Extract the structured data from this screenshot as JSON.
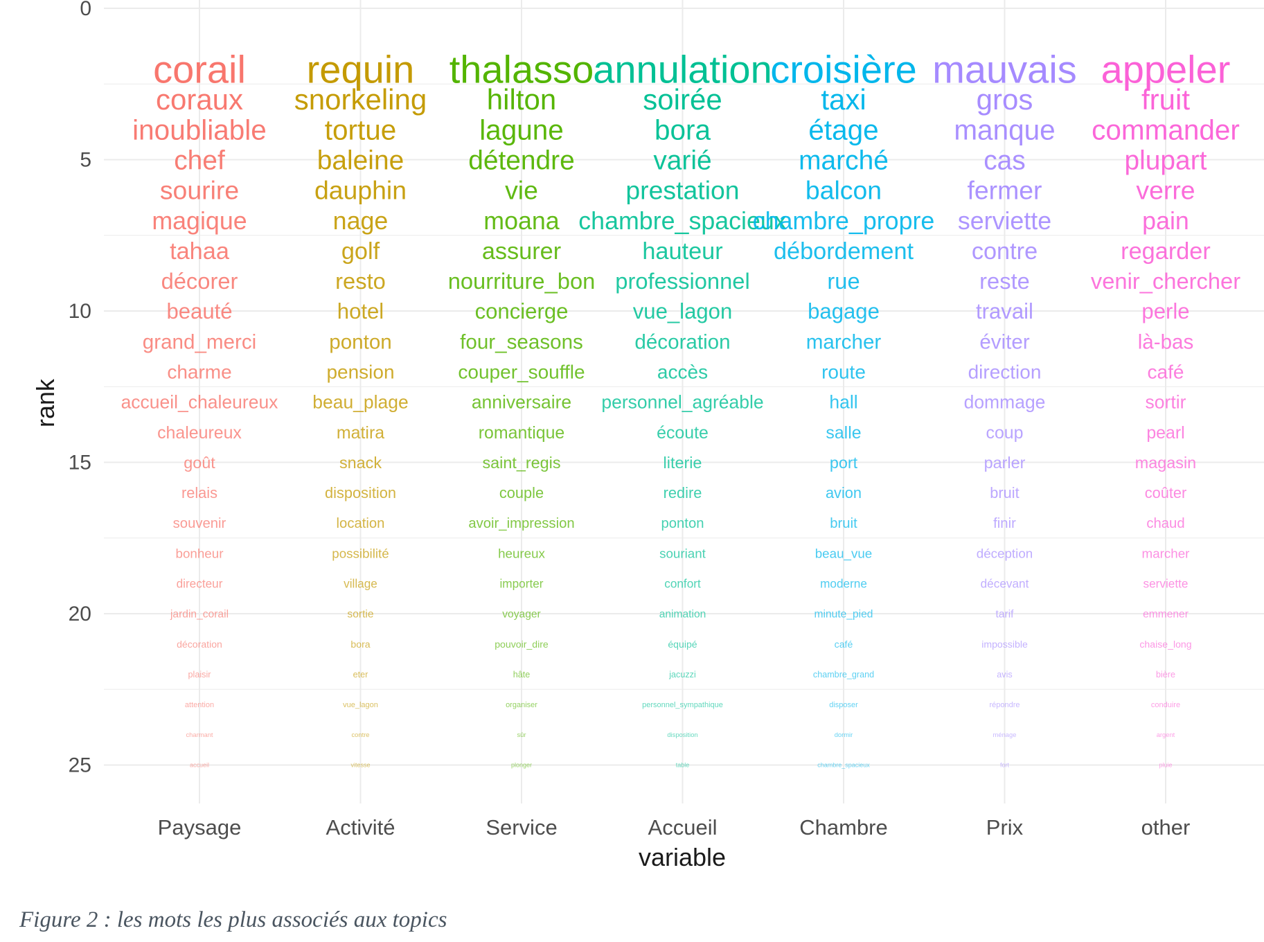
{
  "caption": "Figure 2 : les mots les plus associés aux topics",
  "chart_data": {
    "type": "text-rank",
    "title": "",
    "xlabel": "variable",
    "ylabel": "rank",
    "y_reversed": true,
    "ylim": [
      0,
      26
    ],
    "y_ticks": [
      0,
      5,
      10,
      15,
      20,
      25
    ],
    "grid": true,
    "legend": "none",
    "text_size_decreases_with_rank": true,
    "topics": [
      {
        "name": "Paysage",
        "color": "#F8766D",
        "words": [
          "corail",
          "coraux",
          "inoubliable",
          "chef",
          "sourire",
          "magique",
          "tahaa",
          "décorer",
          "beauté",
          "grand_merci",
          "charme",
          "accueil_chaleureux",
          "chaleureux",
          "goût",
          "relais",
          "souvenir",
          "bonheur",
          "directeur",
          "jardin_corail",
          "décoration",
          "plaisir",
          "attention",
          "charmant",
          "accueil"
        ]
      },
      {
        "name": "Activité",
        "color": "#C49A00",
        "words": [
          "requin",
          "snorkeling",
          "tortue",
          "baleine",
          "dauphin",
          "nage",
          "golf",
          "resto",
          "hotel",
          "ponton",
          "pension",
          "beau_plage",
          "matira",
          "snack",
          "disposition",
          "location",
          "possibilité",
          "village",
          "sortie",
          "bora",
          "eter",
          "vue_lagon",
          "contre",
          "vitesse"
        ]
      },
      {
        "name": "Service",
        "color": "#53B400",
        "words": [
          "thalasso",
          "hilton",
          "lagune",
          "détendre",
          "vie",
          "moana",
          "assurer",
          "nourriture_bon",
          "concierge",
          "four_seasons",
          "couper_souffle",
          "anniversaire",
          "romantique",
          "saint_regis",
          "couple",
          "avoir_impression",
          "heureux",
          "importer",
          "voyager",
          "pouvoir_dire",
          "hâte",
          "organiser",
          "sûr",
          "plonger"
        ]
      },
      {
        "name": "Accueil",
        "color": "#00C094",
        "words": [
          "annulation",
          "soirée",
          "bora",
          "varié",
          "prestation",
          "chambre_spacieux",
          "hauteur",
          "professionnel",
          "vue_lagon",
          "décoration",
          "accès",
          "personnel_agréable",
          "écoute",
          "literie",
          "redire",
          "ponton",
          "souriant",
          "confort",
          "animation",
          "équipé",
          "jacuzzi",
          "personnel_sympathique",
          "disposition",
          "table"
        ]
      },
      {
        "name": "Chambre",
        "color": "#00B6EB",
        "words": [
          "croisière",
          "taxi",
          "étage",
          "marché",
          "balcon",
          "chambre_propre",
          "débordement",
          "rue",
          "bagage",
          "marcher",
          "route",
          "hall",
          "salle",
          "port",
          "avion",
          "bruit",
          "beau_vue",
          "moderne",
          "minute_pied",
          "café",
          "chambre_grand",
          "disposer",
          "dormir",
          "chambre_spacieux"
        ]
      },
      {
        "name": "Prix",
        "color": "#A58AFF",
        "words": [
          "mauvais",
          "gros",
          "manque",
          "cas",
          "fermer",
          "serviette",
          "contre",
          "reste",
          "travail",
          "éviter",
          "direction",
          "dommage",
          "coup",
          "parler",
          "bruit",
          "finir",
          "déception",
          "décevant",
          "tarif",
          "impossible",
          "avis",
          "répondre",
          "ménage",
          "fort"
        ]
      },
      {
        "name": "other",
        "color": "#FB61D7",
        "words": [
          "appeler",
          "fruit",
          "commander",
          "plupart",
          "verre",
          "pain",
          "regarder",
          "venir_chercher",
          "perle",
          "là-bas",
          "café",
          "sortir",
          "pearl",
          "magasin",
          "coûter",
          "chaud",
          "marcher",
          "serviette",
          "emmener",
          "chaise_long",
          "bière",
          "conduire",
          "argent",
          "pluie"
        ]
      }
    ]
  }
}
